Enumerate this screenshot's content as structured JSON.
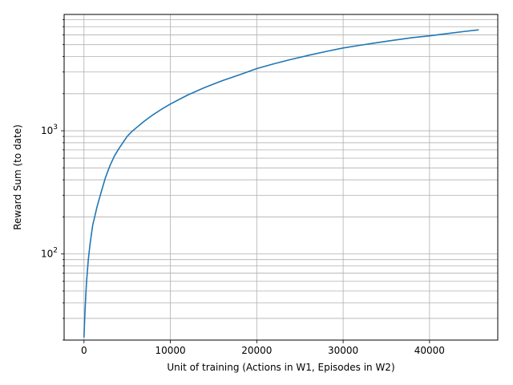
{
  "chart_data": {
    "type": "line",
    "title": "",
    "xlabel": "Unit of training (Actions in W1, Episodes in W2)",
    "ylabel": "Reward Sum (to date)",
    "xlim": [
      -2300,
      47900
    ],
    "ylim": [
      20,
      8800
    ],
    "yscale": "log",
    "grid": true,
    "x_ticks": [
      0,
      10000,
      20000,
      30000,
      40000
    ],
    "x_tick_labels": [
      "0",
      "10000",
      "20000",
      "30000",
      "40000"
    ],
    "y_major_ticks": [
      100,
      1000
    ],
    "y_tick_labels": [
      {
        "base": "10",
        "exp": "2"
      },
      {
        "base": "10",
        "exp": "3"
      }
    ],
    "colors": {
      "line": "#1f77b4",
      "grid": "#b0b0b0"
    },
    "series": [
      {
        "name": "",
        "x": [
          0,
          50,
          100,
          200,
          300,
          500,
          700,
          1000,
          1500,
          2000,
          2500,
          3000,
          3500,
          4000,
          4500,
          5000,
          5500,
          6000,
          7000,
          8000,
          9000,
          10000,
          12000,
          14000,
          16000,
          18000,
          20000,
          22000,
          24000,
          26000,
          28000,
          30000,
          32000,
          34000,
          36000,
          38000,
          40000,
          42000,
          44000,
          45700
        ],
        "y": [
          21,
          26,
          32,
          45,
          60,
          90,
          120,
          170,
          240,
          320,
          420,
          520,
          620,
          710,
          800,
          900,
          980,
          1050,
          1200,
          1350,
          1500,
          1650,
          1950,
          2250,
          2550,
          2850,
          3200,
          3500,
          3800,
          4100,
          4400,
          4700,
          4950,
          5200,
          5450,
          5700,
          5900,
          6150,
          6400,
          6600
        ]
      }
    ]
  }
}
